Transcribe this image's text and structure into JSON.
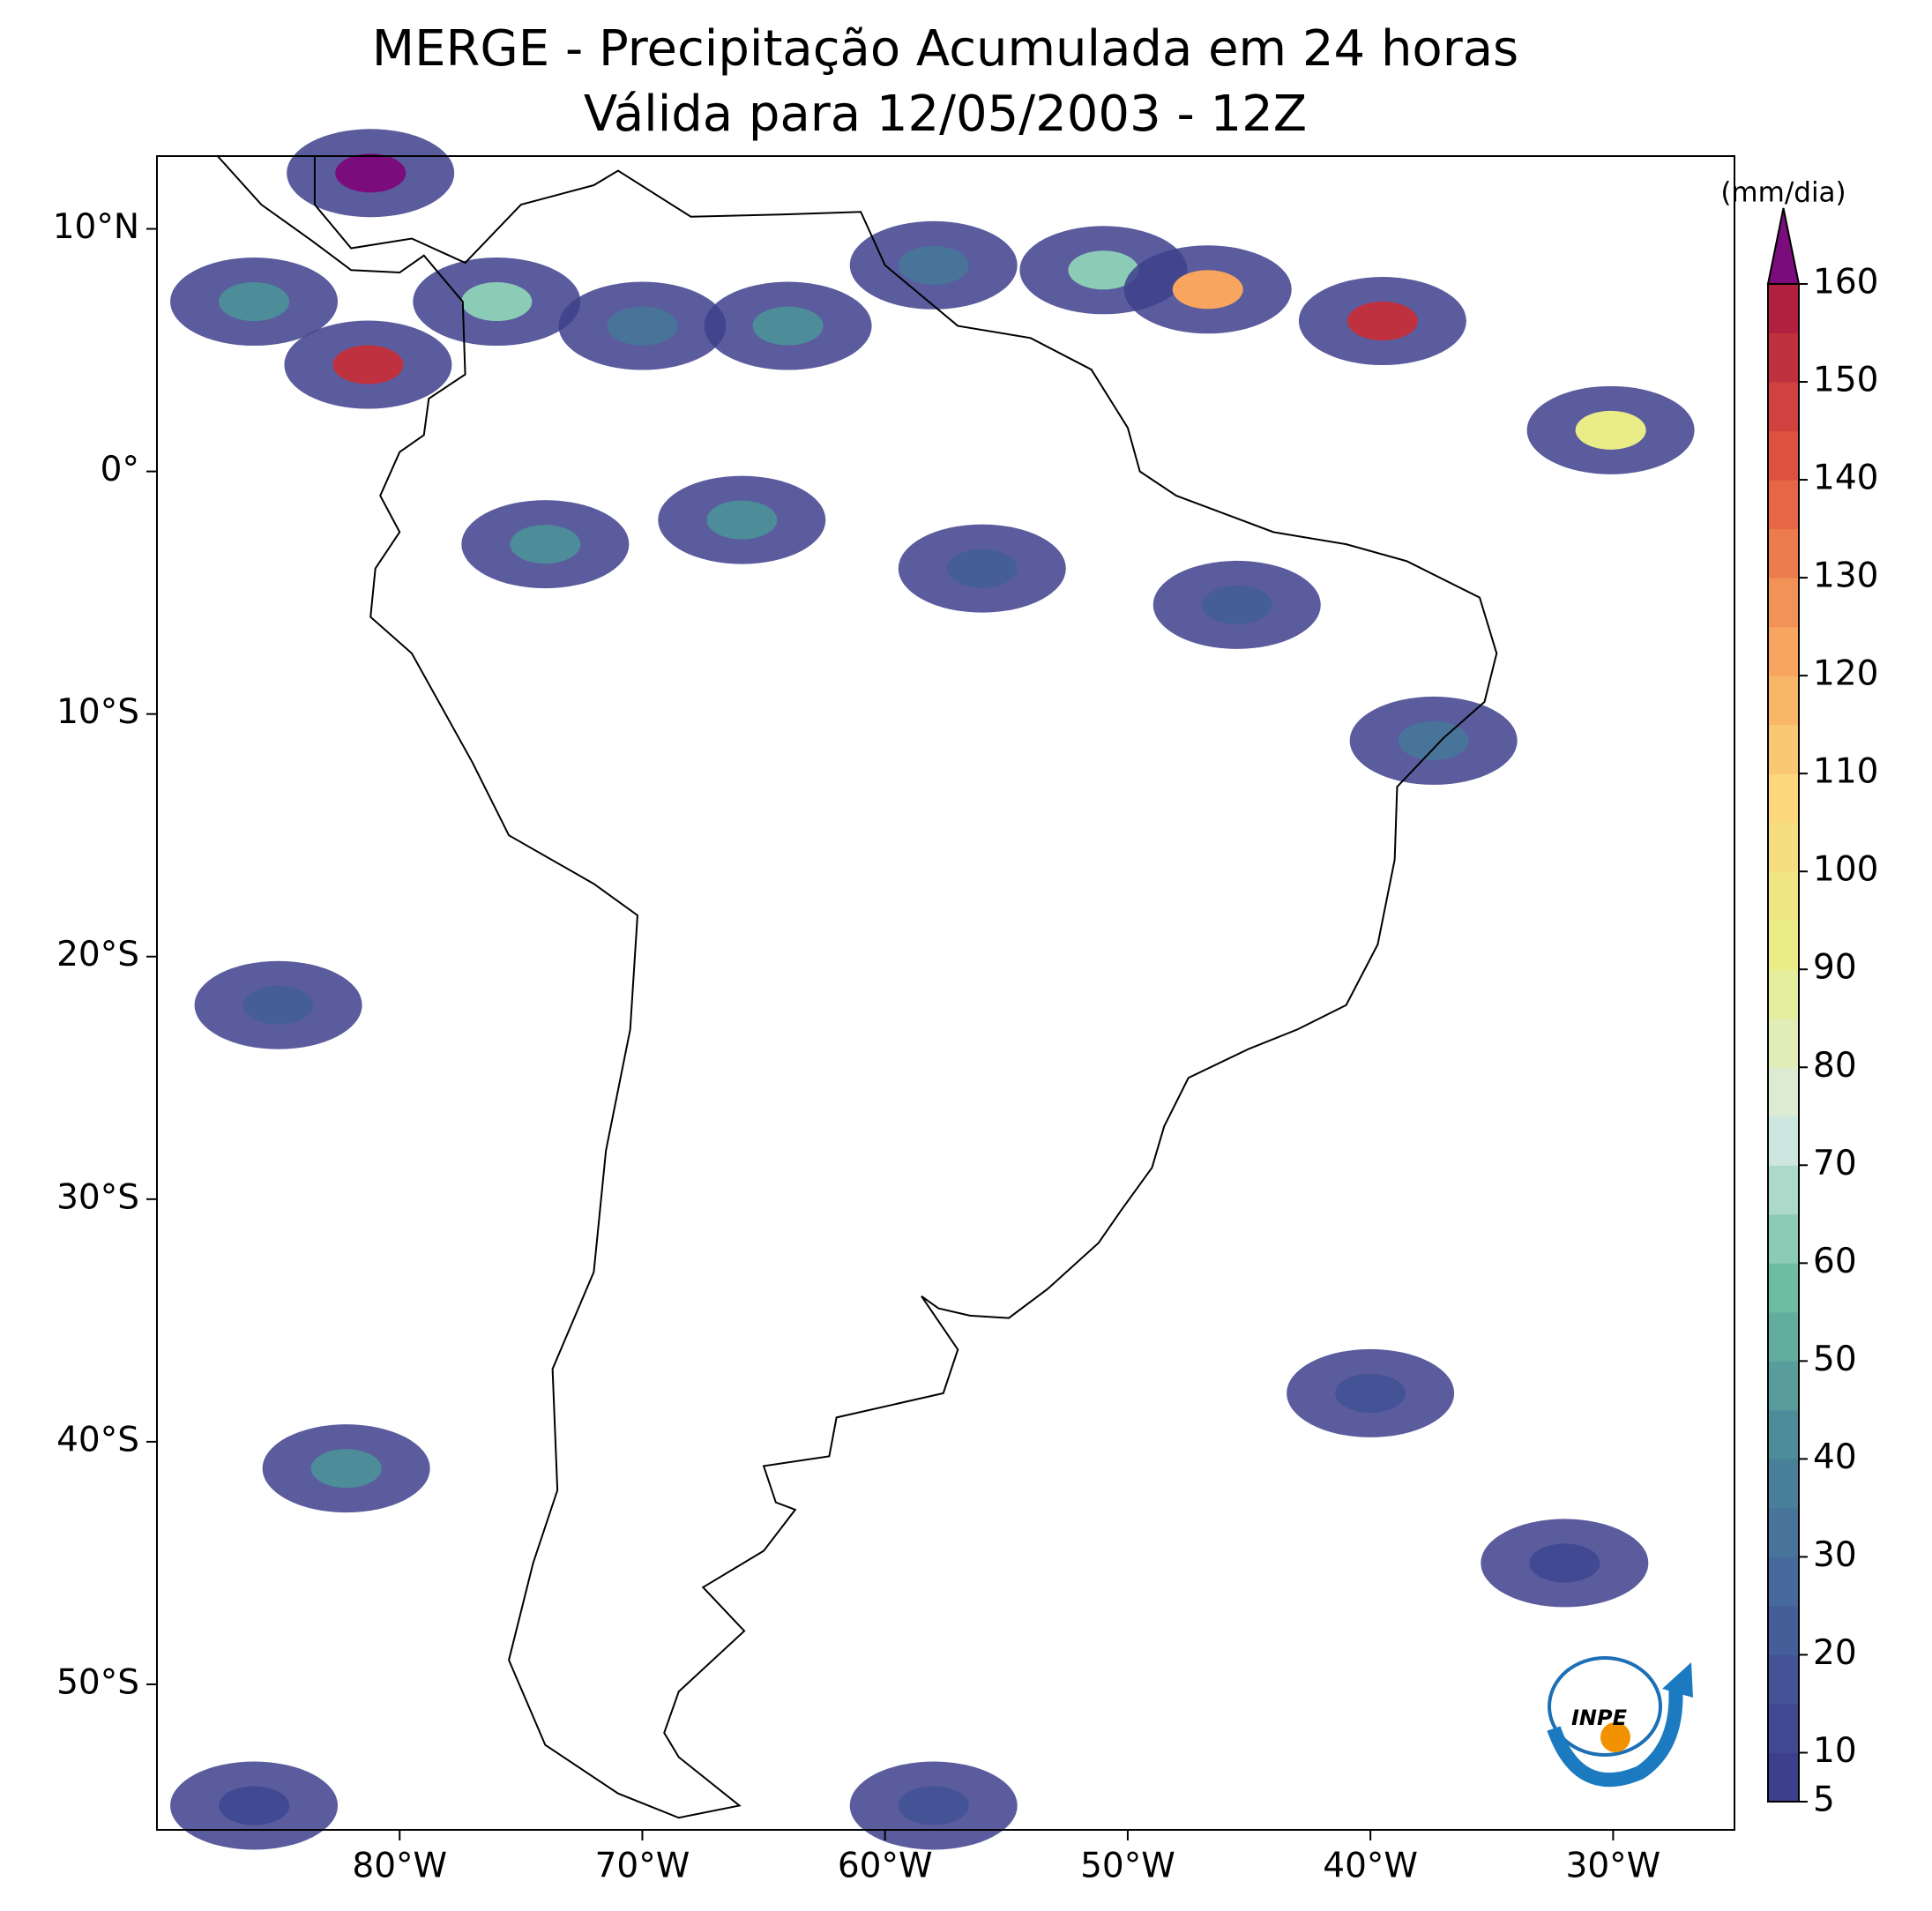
{
  "map": {
    "title": "MERGE - Precipitação Acumulada em 24 horas",
    "subtitle": "Válida para 12/05/2003 - 12Z",
    "xlim": [
      -90,
      -25
    ],
    "ylim": [
      -56,
      13
    ],
    "xticks": [
      {
        "value": -80,
        "label": "80°W"
      },
      {
        "value": -70,
        "label": "70°W"
      },
      {
        "value": -60,
        "label": "60°W"
      },
      {
        "value": -50,
        "label": "50°W"
      },
      {
        "value": -40,
        "label": "40°W"
      },
      {
        "value": -30,
        "label": "30°W"
      }
    ],
    "yticks": [
      {
        "value": 10,
        "label": "10°N"
      },
      {
        "value": 0,
        "label": "0°"
      },
      {
        "value": -10,
        "label": "10°S"
      },
      {
        "value": -20,
        "label": "20°S"
      },
      {
        "value": -30,
        "label": "30°S"
      },
      {
        "value": -40,
        "label": "40°S"
      },
      {
        "value": -50,
        "label": "50°S"
      }
    ],
    "colorbar": {
      "label": "(mm/dia)",
      "lim": [
        5,
        160
      ],
      "ticks": [
        5,
        10,
        20,
        30,
        40,
        50,
        60,
        70,
        80,
        90,
        100,
        110,
        120,
        130,
        140,
        150,
        160
      ],
      "levels": [
        5,
        10,
        15,
        20,
        25,
        30,
        35,
        40,
        45,
        50,
        55,
        60,
        65,
        70,
        75,
        80,
        85,
        90,
        95,
        100,
        105,
        110,
        115,
        120,
        125,
        130,
        135,
        140,
        145,
        150,
        155,
        160
      ],
      "colormap": [
        "#3e3f8c",
        "#46619c",
        "#4a8798",
        "#6cbda2",
        "#d8ebe6",
        "#e7ee88",
        "#fcd77c",
        "#f6a05c",
        "#e2583f",
        "#b2203f"
      ],
      "extend_color": "#7b0c7c"
    },
    "cells": [
      {
        "lon": -81.2,
        "lat": 12.3,
        "mm": 160
      },
      {
        "lon": -81.3,
        "lat": 4.4,
        "mm": 150
      },
      {
        "lon": -86,
        "lat": 7,
        "mm": 40
      },
      {
        "lon": -76,
        "lat": 7,
        "mm": 60
      },
      {
        "lon": -70,
        "lat": 6,
        "mm": 30
      },
      {
        "lon": -64,
        "lat": 6,
        "mm": 40
      },
      {
        "lon": -58,
        "lat": 8.5,
        "mm": 30
      },
      {
        "lon": -51,
        "lat": 8.3,
        "mm": 60
      },
      {
        "lon": -46.7,
        "lat": 7.5,
        "mm": 120
      },
      {
        "lon": -39.5,
        "lat": 6.2,
        "mm": 150
      },
      {
        "lon": -30.1,
        "lat": 1.7,
        "mm": 90
      },
      {
        "lon": -74,
        "lat": -3,
        "mm": 40
      },
      {
        "lon": -65.9,
        "lat": -2,
        "mm": 40
      },
      {
        "lon": -56,
        "lat": -4,
        "mm": 20
      },
      {
        "lon": -45.5,
        "lat": -5.5,
        "mm": 20
      },
      {
        "lon": -37.4,
        "lat": -11.1,
        "mm": 30
      },
      {
        "lon": -85,
        "lat": -22,
        "mm": 20
      },
      {
        "lon": -82.2,
        "lat": -41.1,
        "mm": 40
      },
      {
        "lon": -58,
        "lat": -55,
        "mm": 15
      },
      {
        "lon": -40,
        "lat": -38,
        "mm": 15
      },
      {
        "lon": -32,
        "lat": -45,
        "mm": 10
      },
      {
        "lon": -86,
        "lat": -55,
        "mm": 10
      }
    ],
    "logo_text": "INPE"
  }
}
